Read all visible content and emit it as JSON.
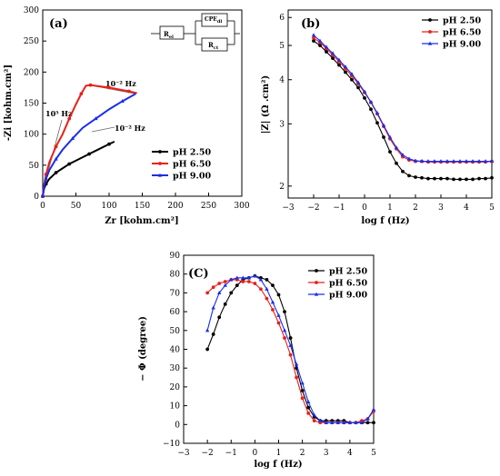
{
  "chart_data": [
    {
      "type": "scatter",
      "panel_label": "(a)",
      "xlabel": "Zr [kohm.cm²]",
      "ylabel": "-Zi [kohm.cm²]",
      "xlim": [
        0,
        300
      ],
      "ylim": [
        0,
        300
      ],
      "xticks": [
        0,
        50,
        100,
        150,
        200,
        250,
        300
      ],
      "yticks": [
        0,
        50,
        100,
        150,
        200,
        250,
        300
      ],
      "legend_position": "lower-right",
      "annotations": [
        "10⁵ Hz",
        "10⁻² Hz",
        "10⁻² Hz"
      ],
      "circuit_labels": [
        "R",
        "el",
        "CPE",
        "dl",
        "R",
        "ct"
      ],
      "series": [
        {
          "name": "pH 2.50",
          "color": "#000000",
          "x": [
            0,
            2,
            5,
            10,
            20,
            30,
            40,
            55,
            70,
            85,
            100,
            108
          ],
          "y": [
            0,
            12,
            20,
            28,
            38,
            45,
            52,
            60,
            68,
            76,
            84,
            88
          ]
        },
        {
          "name": "pH 6.50",
          "color": "#e8201a",
          "x": [
            0,
            2,
            5,
            10,
            20,
            30,
            40,
            50,
            58,
            65,
            72,
            85,
            100,
            115,
            130,
            142
          ],
          "y": [
            0,
            18,
            35,
            55,
            80,
            100,
            125,
            148,
            165,
            178,
            179,
            177,
            175,
            172,
            169,
            166
          ]
        },
        {
          "name": "pH 9.00",
          "color": "#1a2ee8",
          "x": [
            0,
            2,
            5,
            10,
            20,
            30,
            45,
            60,
            80,
            100,
            120,
            140
          ],
          "y": [
            0,
            15,
            28,
            42,
            60,
            75,
            93,
            110,
            125,
            140,
            153,
            165
          ]
        }
      ]
    },
    {
      "type": "line",
      "panel_label": "(b)",
      "xlabel": "log f (Hz)",
      "ylabel": "|Z| (Ω .cm²)",
      "xlim": [
        -3,
        5
      ],
      "ylim": [
        1.85,
        6.3
      ],
      "y_scale": "log",
      "xticks": [
        -3,
        -2,
        -1,
        0,
        1,
        2,
        3,
        4,
        5
      ],
      "yticks": [
        2,
        3,
        4,
        5,
        6
      ],
      "legend_position": "top-right",
      "x": [
        -2.0,
        -1.75,
        -1.5,
        -1.25,
        -1.0,
        -0.75,
        -0.5,
        -0.25,
        0.0,
        0.25,
        0.5,
        0.75,
        1.0,
        1.25,
        1.5,
        1.75,
        2.0,
        2.25,
        2.5,
        2.75,
        3.0,
        3.25,
        3.5,
        3.75,
        4.0,
        4.25,
        4.5,
        4.75,
        5.0
      ],
      "series": [
        {
          "name": "pH 2.50",
          "color": "#000000",
          "values": [
            5.15,
            5.0,
            4.8,
            4.6,
            4.4,
            4.2,
            4.0,
            3.8,
            3.55,
            3.3,
            3.02,
            2.75,
            2.5,
            2.32,
            2.2,
            2.14,
            2.12,
            2.11,
            2.1,
            2.1,
            2.1,
            2.1,
            2.09,
            2.09,
            2.09,
            2.09,
            2.1,
            2.1,
            2.11
          ]
        },
        {
          "name": "pH 6.50",
          "color": "#e8201a",
          "values": [
            5.25,
            5.1,
            4.9,
            4.7,
            4.5,
            4.3,
            4.1,
            3.9,
            3.68,
            3.45,
            3.2,
            2.95,
            2.72,
            2.55,
            2.42,
            2.37,
            2.35,
            2.35,
            2.34,
            2.34,
            2.34,
            2.34,
            2.34,
            2.34,
            2.34,
            2.34,
            2.34,
            2.34,
            2.35
          ]
        },
        {
          "name": "pH 9.00",
          "color": "#1a2ee8",
          "values": [
            5.35,
            5.15,
            4.95,
            4.75,
            4.55,
            4.35,
            4.15,
            3.93,
            3.7,
            3.46,
            3.22,
            2.97,
            2.75,
            2.57,
            2.45,
            2.39,
            2.36,
            2.35,
            2.35,
            2.35,
            2.35,
            2.35,
            2.35,
            2.35,
            2.35,
            2.35,
            2.35,
            2.35,
            2.35
          ]
        }
      ]
    },
    {
      "type": "line",
      "panel_label": "(C)",
      "xlabel": "log f (Hz)",
      "ylabel": "− Φ (degree)",
      "xlim": [
        -3,
        5
      ],
      "ylim": [
        -10,
        90
      ],
      "xticks": [
        -3,
        -2,
        -1,
        0,
        1,
        2,
        3,
        4,
        5
      ],
      "yticks": [
        -10,
        0,
        10,
        20,
        30,
        40,
        50,
        60,
        70,
        80,
        90
      ],
      "legend_position": "top-right",
      "x": [
        -2.0,
        -1.75,
        -1.5,
        -1.25,
        -1.0,
        -0.75,
        -0.5,
        -0.25,
        0.0,
        0.25,
        0.5,
        0.75,
        1.0,
        1.25,
        1.5,
        1.75,
        2.0,
        2.25,
        2.5,
        2.75,
        3.0,
        3.25,
        3.5,
        3.75,
        4.0,
        4.25,
        4.5,
        4.75,
        5.0
      ],
      "series": [
        {
          "name": "pH 2.50",
          "color": "#000000",
          "values": [
            40,
            48,
            57,
            64,
            70,
            74,
            77,
            78,
            79,
            78,
            77,
            74,
            69,
            60,
            46,
            30,
            18,
            9,
            4,
            2,
            2,
            2,
            2,
            2,
            1,
            1,
            1,
            1,
            1
          ]
        },
        {
          "name": "pH 6.50",
          "color": "#e8201a",
          "values": [
            70,
            73,
            75,
            76,
            77,
            77,
            76,
            76,
            75,
            72,
            67,
            61,
            54,
            46,
            37,
            25,
            14,
            6,
            2,
            1,
            1,
            1,
            1,
            1,
            1,
            1,
            2,
            3,
            7
          ]
        },
        {
          "name": "pH 9.00",
          "color": "#1a2ee8",
          "values": [
            50,
            62,
            70,
            74,
            77,
            78,
            78,
            78,
            79,
            77,
            72,
            65,
            58,
            50,
            42,
            32,
            22,
            12,
            5,
            2,
            1,
            1,
            1,
            1,
            1,
            1,
            1,
            3,
            8
          ]
        }
      ]
    }
  ]
}
